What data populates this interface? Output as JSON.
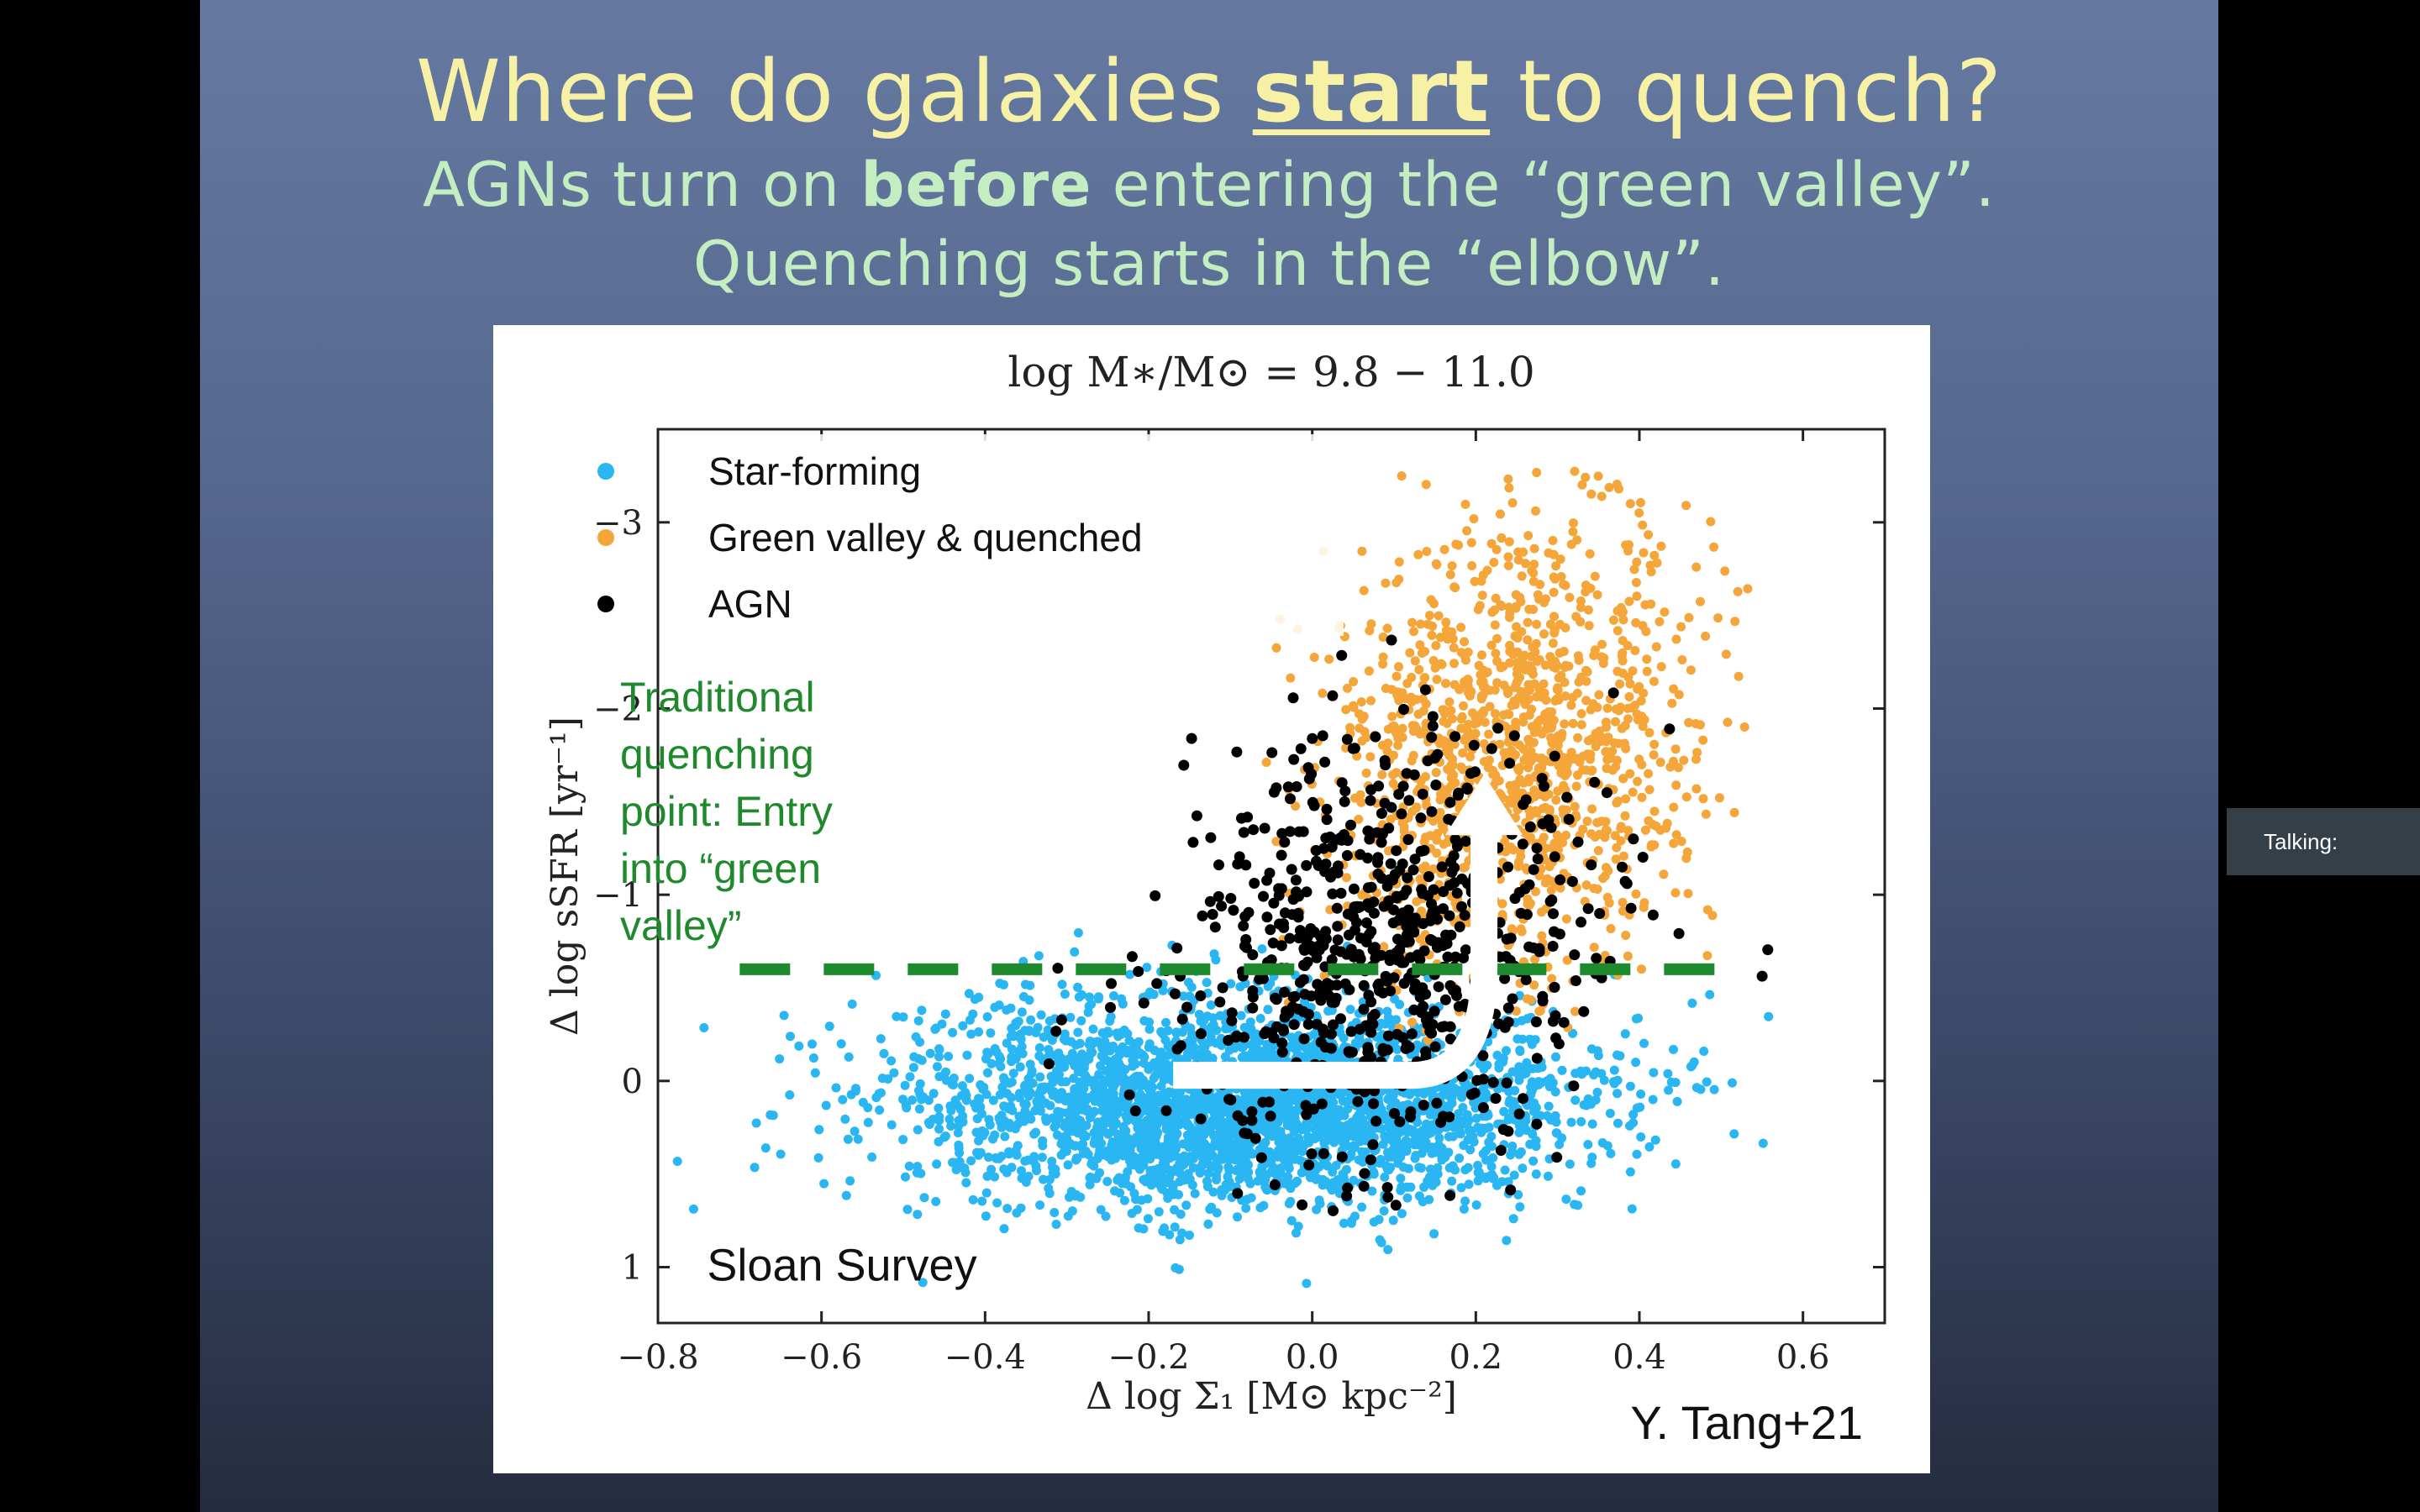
{
  "slide": {
    "title_parts": [
      "Where do galaxies ",
      "start",
      " to quench?"
    ],
    "subtitle1_parts": [
      "AGNs turn on ",
      "before",
      " entering the “green valley”."
    ],
    "subtitle2": "Quenching starts in the “elbow”.",
    "citation": "Y. Tang+21"
  },
  "overlay": {
    "talking_label": "Talking:"
  },
  "chart_data": {
    "type": "scatter",
    "title": "log M∗/M⊙ = 9.8 − 11.0",
    "xlabel": "Δ log Σ₁ [M⊙ kpc⁻²]",
    "ylabel": "Δ log sSFR [yr⁻¹]",
    "xlim": [
      -0.8,
      0.7
    ],
    "ylim": [
      1.3,
      -3.5
    ],
    "y_inverted": true,
    "xticks": [
      -0.8,
      -0.6,
      -0.4,
      -0.2,
      0.0,
      0.2,
      0.4,
      0.6
    ],
    "xtick_labels": [
      "−0.8",
      "−0.6",
      "−0.4",
      "−0.2",
      "0.0",
      "0.2",
      "0.4",
      "0.6"
    ],
    "yticks": [
      -3,
      -2,
      -1,
      0,
      1
    ],
    "ytick_labels": [
      "−3",
      "−2",
      "−1",
      "0",
      "1"
    ],
    "grid": false,
    "legend_position": "top-left",
    "series": [
      {
        "name": "Star-forming",
        "color": "#29b6f2"
      },
      {
        "name": "Green valley & quenched",
        "color": "#f5a63a"
      },
      {
        "name": "AGN",
        "color": "#000000"
      }
    ],
    "point_distributions": [
      {
        "series": "Star-forming",
        "count": 3200,
        "x_center": -0.08,
        "x_sd": 0.2,
        "y_center": 0.12,
        "y_sd": 0.27,
        "min_x": -0.78,
        "max_x": 0.58,
        "min_y": -0.88,
        "max_y": 1.15
      },
      {
        "series": "Green valley & quenched",
        "count": 1300,
        "x_center": 0.22,
        "x_sd": 0.11,
        "y_center": -1.75,
        "y_sd": 0.62,
        "min_x": -0.55,
        "max_x": 0.64,
        "min_y": -3.3,
        "max_y": -0.2
      },
      {
        "series": "AGN",
        "count": 750,
        "x_center": 0.1,
        "x_sd": 0.13,
        "y_center": -0.75,
        "y_sd": 0.55,
        "min_x": -0.55,
        "max_x": 0.62,
        "min_y": -3.15,
        "max_y": 0.7
      }
    ],
    "threshold_line": {
      "y": -0.6,
      "x_start": -0.7,
      "x_end": 0.52,
      "color": "#1e8a2e",
      "dash": true
    },
    "annotations": [
      {
        "text_lines": [
          "Traditional",
          "quenching",
          "point: Entry",
          "into “green",
          "valley”"
        ],
        "color": "#1f8a2c",
        "x": -0.7,
        "y": -2.0
      },
      {
        "text": "Sloan Survey",
        "color": "#111111",
        "x": -0.74,
        "y": 1.0
      }
    ],
    "arrow": {
      "color": "#ffffff",
      "path": [
        [
          -0.17,
          -0.03
        ],
        [
          0.12,
          -0.03
        ],
        [
          0.21,
          -0.6
        ],
        [
          0.21,
          -1.6
        ]
      ],
      "label": "elbow"
    }
  }
}
